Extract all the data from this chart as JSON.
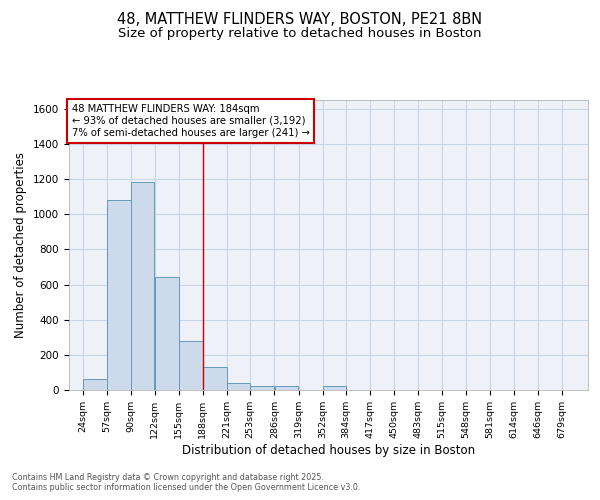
{
  "title_line1": "48, MATTHEW FLINDERS WAY, BOSTON, PE21 8BN",
  "title_line2": "Size of property relative to detached houses in Boston",
  "xlabel": "Distribution of detached houses by size in Boston",
  "ylabel": "Number of detached properties",
  "bar_left_edges": [
    24,
    57,
    90,
    122,
    155,
    188,
    221,
    253,
    286,
    319,
    352,
    384,
    417,
    450,
    483,
    515,
    548,
    581,
    614,
    646
  ],
  "bar_widths": [
    33,
    33,
    32,
    33,
    33,
    33,
    32,
    33,
    33,
    33,
    32,
    33,
    33,
    33,
    32,
    33,
    33,
    33,
    32,
    33
  ],
  "bar_heights": [
    60,
    1080,
    1185,
    645,
    280,
    130,
    40,
    25,
    20,
    0,
    20,
    0,
    0,
    0,
    0,
    0,
    0,
    0,
    0,
    0
  ],
  "bar_color": "#ccdaeb",
  "bar_edgecolor": "#6699bb",
  "vline_x": 188,
  "vline_color": "#cc0000",
  "ylim": [
    0,
    1650
  ],
  "xlim": [
    5,
    715
  ],
  "tick_labels": [
    "24sqm",
    "57sqm",
    "90sqm",
    "122sqm",
    "155sqm",
    "188sqm",
    "221sqm",
    "253sqm",
    "286sqm",
    "319sqm",
    "352sqm",
    "384sqm",
    "417sqm",
    "450sqm",
    "483sqm",
    "515sqm",
    "548sqm",
    "581sqm",
    "614sqm",
    "646sqm",
    "679sqm"
  ],
  "tick_positions": [
    24,
    57,
    90,
    122,
    155,
    188,
    221,
    253,
    286,
    319,
    352,
    384,
    417,
    450,
    483,
    515,
    548,
    581,
    614,
    646,
    679
  ],
  "annotation_line1": "48 MATTHEW FLINDERS WAY: 184sqm",
  "annotation_line2": "← 93% of detached houses are smaller (3,192)",
  "annotation_line3": "7% of semi-detached houses are larger (241) →",
  "annotation_box_color": "#ffffff",
  "annotation_box_edgecolor": "#cc0000",
  "grid_color": "#c8d4e8",
  "bg_color": "#eef2f8",
  "footer_line1": "Contains HM Land Registry data © Crown copyright and database right 2025.",
  "footer_line2": "Contains public sector information licensed under the Open Government Licence v3.0."
}
